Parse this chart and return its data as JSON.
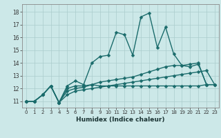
{
  "xlabel": "Humidex (Indice chaleur)",
  "xlim": [
    -0.5,
    23.5
  ],
  "ylim": [
    10.5,
    18.6
  ],
  "xticks": [
    0,
    1,
    2,
    3,
    4,
    5,
    6,
    7,
    8,
    9,
    10,
    11,
    12,
    13,
    14,
    15,
    16,
    17,
    18,
    19,
    20,
    21,
    22,
    23
  ],
  "yticks": [
    11,
    12,
    13,
    14,
    15,
    16,
    17,
    18
  ],
  "background_color": "#cce8e8",
  "grid_color": "#aacccc",
  "line_color": "#1a6b6b",
  "series": [
    {
      "x": [
        0,
        1,
        2,
        3,
        4,
        5,
        6,
        7,
        8,
        9,
        10,
        11,
        12,
        13,
        14,
        15,
        16,
        17,
        18,
        19,
        20,
        21,
        22
      ],
      "y": [
        11.0,
        11.0,
        11.5,
        12.2,
        10.9,
        12.2,
        12.6,
        12.3,
        14.0,
        14.5,
        14.6,
        16.4,
        16.2,
        14.6,
        17.6,
        17.9,
        15.2,
        16.8,
        14.7,
        13.8,
        13.7,
        13.9,
        12.3
      ],
      "marker": "D",
      "markersize": 2.5,
      "linewidth": 1.0
    },
    {
      "x": [
        0,
        1,
        2,
        3,
        4,
        5,
        6,
        7,
        8,
        9,
        10,
        11,
        12,
        13,
        14,
        15,
        16,
        17,
        18,
        19,
        20,
        21,
        22,
        23
      ],
      "y": [
        11.0,
        11.0,
        11.5,
        12.2,
        10.9,
        12.0,
        12.2,
        12.2,
        12.3,
        12.2,
        12.2,
        12.2,
        12.2,
        12.2,
        12.2,
        12.2,
        12.2,
        12.2,
        12.2,
        12.2,
        12.2,
        12.2,
        12.3,
        12.3
      ],
      "marker": "D",
      "markersize": 2.5,
      "linewidth": 1.0
    },
    {
      "x": [
        0,
        1,
        2,
        3,
        4,
        5,
        6,
        7,
        8,
        9,
        10,
        11,
        12,
        13,
        14,
        15,
        16,
        17,
        18,
        19,
        20,
        21,
        22,
        23
      ],
      "y": [
        11.0,
        11.0,
        11.5,
        12.2,
        10.9,
        11.8,
        12.0,
        12.1,
        12.3,
        12.5,
        12.6,
        12.7,
        12.8,
        12.9,
        13.1,
        13.3,
        13.5,
        13.7,
        13.8,
        13.8,
        13.9,
        14.0,
        12.3,
        12.3
      ],
      "marker": "D",
      "markersize": 2.5,
      "linewidth": 1.0
    },
    {
      "x": [
        0,
        1,
        2,
        3,
        4,
        5,
        6,
        7,
        8,
        9,
        10,
        11,
        12,
        13,
        14,
        15,
        16,
        17,
        18,
        19,
        20,
        21,
        22,
        23
      ],
      "y": [
        11.0,
        11.0,
        11.5,
        12.2,
        10.9,
        11.5,
        11.8,
        11.9,
        12.0,
        12.1,
        12.2,
        12.3,
        12.4,
        12.5,
        12.6,
        12.7,
        12.8,
        12.9,
        13.0,
        13.1,
        13.2,
        13.3,
        13.4,
        12.3
      ],
      "marker": "D",
      "markersize": 2.5,
      "linewidth": 1.0
    }
  ],
  "xtick_fontsize": 5.0,
  "ytick_fontsize": 5.5,
  "xlabel_fontsize": 6.5
}
